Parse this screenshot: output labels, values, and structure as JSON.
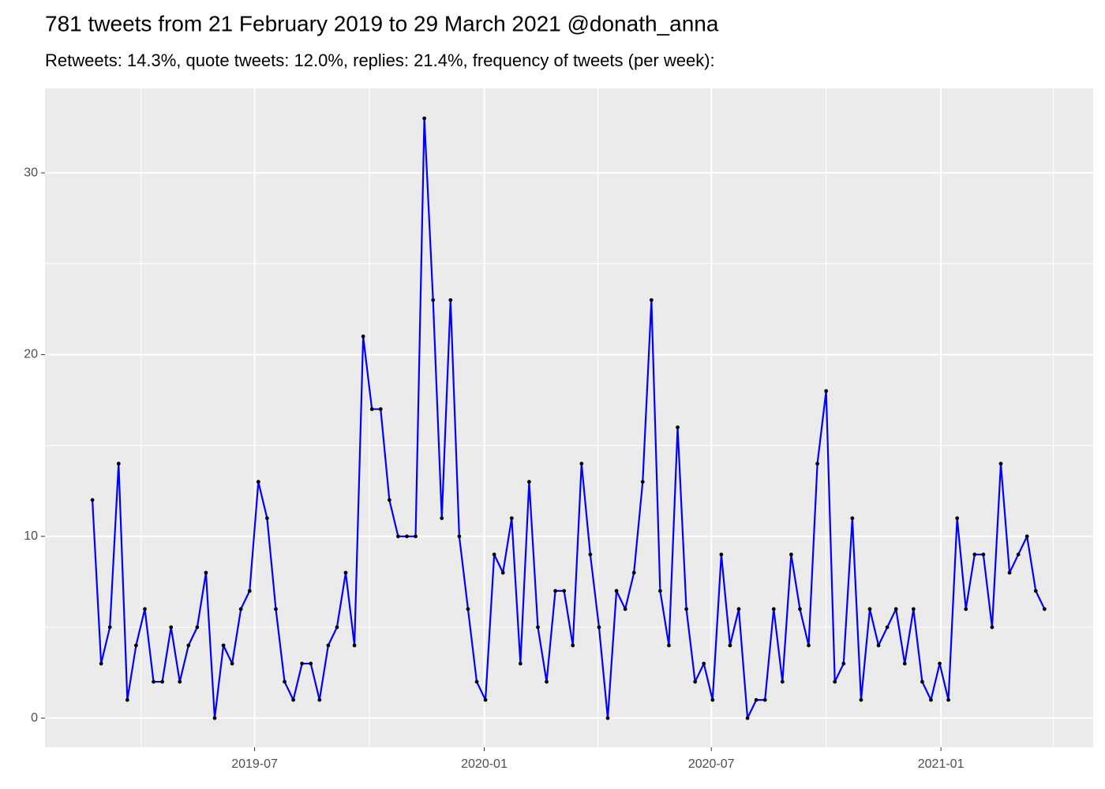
{
  "chart_data": {
    "type": "line",
    "title": "781 tweets from 21 February 2019 to 29 March 2021 @donath_anna",
    "subtitle": "Retweets: 14.3%, quote tweets: 12.0%, replies: 21.4%, frequency of tweets (per week):",
    "x": [
      "2019-02-21",
      "2019-02-28",
      "2019-03-07",
      "2019-03-14",
      "2019-03-21",
      "2019-03-28",
      "2019-04-04",
      "2019-04-11",
      "2019-04-18",
      "2019-04-25",
      "2019-05-02",
      "2019-05-09",
      "2019-05-16",
      "2019-05-23",
      "2019-05-30",
      "2019-06-06",
      "2019-06-13",
      "2019-06-20",
      "2019-06-27",
      "2019-07-04",
      "2019-07-11",
      "2019-07-18",
      "2019-07-25",
      "2019-08-01",
      "2019-08-08",
      "2019-08-15",
      "2019-08-22",
      "2019-08-29",
      "2019-09-05",
      "2019-09-12",
      "2019-09-19",
      "2019-09-26",
      "2019-10-03",
      "2019-10-10",
      "2019-10-17",
      "2019-10-24",
      "2019-10-31",
      "2019-11-07",
      "2019-11-14",
      "2019-11-21",
      "2019-11-28",
      "2019-12-05",
      "2019-12-12",
      "2019-12-19",
      "2019-12-26",
      "2020-01-02",
      "2020-01-09",
      "2020-01-16",
      "2020-01-23",
      "2020-01-30",
      "2020-02-06",
      "2020-02-13",
      "2020-02-20",
      "2020-02-27",
      "2020-03-05",
      "2020-03-12",
      "2020-03-19",
      "2020-03-26",
      "2020-04-02",
      "2020-04-09",
      "2020-04-16",
      "2020-04-23",
      "2020-04-30",
      "2020-05-07",
      "2020-05-14",
      "2020-05-21",
      "2020-05-28",
      "2020-06-04",
      "2020-06-11",
      "2020-06-18",
      "2020-06-25",
      "2020-07-02",
      "2020-07-09",
      "2020-07-16",
      "2020-07-23",
      "2020-07-30",
      "2020-08-06",
      "2020-08-13",
      "2020-08-20",
      "2020-08-27",
      "2020-09-03",
      "2020-09-10",
      "2020-09-17",
      "2020-09-24",
      "2020-10-01",
      "2020-10-08",
      "2020-10-15",
      "2020-10-22",
      "2020-10-29",
      "2020-11-05",
      "2020-11-12",
      "2020-11-19",
      "2020-11-26",
      "2020-12-03",
      "2020-12-10",
      "2020-12-17",
      "2020-12-24",
      "2020-12-31",
      "2021-01-07",
      "2021-01-14",
      "2021-01-21",
      "2021-01-28",
      "2021-02-04",
      "2021-02-11",
      "2021-02-18",
      "2021-02-25",
      "2021-03-04",
      "2021-03-11",
      "2021-03-18",
      "2021-03-25"
    ],
    "series": [
      {
        "color": "#0000ff",
        "point_color": "#000000",
        "values": [
          12,
          3,
          5,
          14,
          1,
          4,
          6,
          2,
          2,
          5,
          2,
          4,
          5,
          8,
          0,
          4,
          3,
          6,
          7,
          13,
          11,
          6,
          2,
          1,
          3,
          3,
          1,
          4,
          5,
          8,
          4,
          21,
          17,
          17,
          12,
          10,
          10,
          10,
          33,
          23,
          11,
          23,
          10,
          6,
          2,
          1,
          9,
          8,
          11,
          3,
          13,
          5,
          2,
          7,
          7,
          4,
          14,
          9,
          5,
          0,
          7,
          6,
          8,
          13,
          23,
          7,
          4,
          16,
          6,
          2,
          3,
          1,
          9,
          4,
          6,
          0,
          1,
          1,
          6,
          2,
          9,
          6,
          4,
          14,
          18,
          2,
          3,
          11,
          1,
          6,
          4,
          5,
          6,
          3,
          6,
          2,
          1,
          3,
          1,
          11,
          6,
          9,
          9,
          5,
          14,
          8,
          9,
          10,
          7,
          6
        ]
      }
    ],
    "xlim": [
      "2019-01-14",
      "2021-05-03"
    ],
    "xticks": [
      {
        "value": "2019-07-01",
        "label": "2019-07"
      },
      {
        "value": "2020-01-01",
        "label": "2020-01"
      },
      {
        "value": "2020-07-01",
        "label": "2020-07"
      },
      {
        "value": "2021-01-01",
        "label": "2021-01"
      }
    ],
    "xminor": [
      "2019-04-01",
      "2019-10-01",
      "2020-04-01",
      "2020-10-01",
      "2021-04-01"
    ],
    "ylim": [
      -1.6,
      34.65
    ],
    "yticks": [
      0,
      10,
      20,
      30
    ],
    "yminor": [
      5,
      15,
      25
    ],
    "grid": true
  }
}
